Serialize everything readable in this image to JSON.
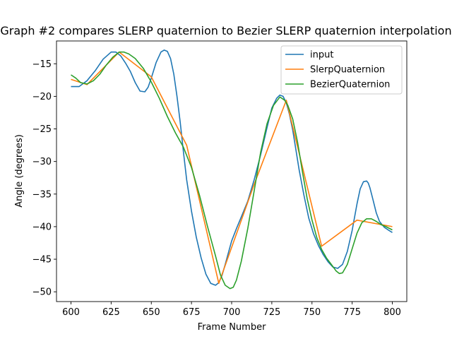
{
  "chart_data": {
    "type": "line",
    "title": "Graph #2 compares SLERP quaternion to Bezier SLERP quaternion interpolation",
    "xlabel": "Frame Number",
    "ylabel": "Angle (degrees)",
    "xlim": [
      591,
      809
    ],
    "ylim": [
      -51.5,
      -11.5
    ],
    "xticks": [
      600,
      625,
      650,
      675,
      700,
      725,
      750,
      775,
      800
    ],
    "yticks": [
      -50,
      -45,
      -40,
      -35,
      -30,
      -25,
      -20,
      -15
    ],
    "grid": false,
    "legend_position": "top-right",
    "series": [
      {
        "name": "input",
        "color": "#1f77b4",
        "x": [
          600,
          605,
          610,
          615,
          620,
          625,
          628,
          631,
          634,
          637,
          640,
          643,
          646,
          648,
          650,
          653,
          656,
          658,
          660,
          662,
          664,
          666,
          668,
          670,
          672,
          675,
          678,
          681,
          684,
          687,
          690,
          692,
          694,
          696,
          698,
          700,
          703,
          706,
          710,
          714,
          718,
          722,
          725,
          728,
          730,
          732,
          734,
          736,
          738,
          740,
          742,
          745,
          748,
          751,
          754,
          757,
          760,
          763,
          766,
          769,
          772,
          775,
          778,
          780,
          782,
          784,
          785,
          786,
          788,
          790,
          792,
          795,
          798,
          800
        ],
        "y": [
          -18.5,
          -18.5,
          -17.6,
          -16.1,
          -14.3,
          -13.2,
          -13.2,
          -13.8,
          -14.9,
          -16.2,
          -17.9,
          -19.2,
          -19.3,
          -18.6,
          -17.2,
          -14.8,
          -13.2,
          -12.9,
          -13.1,
          -14.2,
          -16.6,
          -20.0,
          -24.0,
          -28.5,
          -32.8,
          -37.6,
          -41.6,
          -44.8,
          -47.3,
          -48.7,
          -49.0,
          -48.6,
          -47.5,
          -45.8,
          -44.0,
          -42.2,
          -40.3,
          -38.5,
          -36.1,
          -32.8,
          -29.0,
          -24.8,
          -21.8,
          -20.3,
          -19.8,
          -20.0,
          -21.0,
          -22.8,
          -25.2,
          -28.2,
          -31.3,
          -35.2,
          -38.7,
          -41.1,
          -42.9,
          -44.3,
          -45.4,
          -46.2,
          -46.4,
          -45.8,
          -43.8,
          -40.6,
          -36.5,
          -34.2,
          -33.1,
          -33.0,
          -33.3,
          -34.0,
          -35.9,
          -37.9,
          -39.2,
          -40.1,
          -40.6,
          -40.9
        ]
      },
      {
        "name": "SlerpQuaternion",
        "color": "#ff7f0e",
        "x": [
          600,
          610,
          630,
          650,
          672,
          692,
          714,
          734,
          756,
          778,
          800
        ],
        "y": [
          -17.4,
          -18.2,
          -13.2,
          -17.0,
          -27.5,
          -48.7,
          -33.5,
          -20.6,
          -43.0,
          -39.0,
          -40.0
        ]
      },
      {
        "name": "BezierQuaternion",
        "color": "#2ca02c",
        "x": [
          600,
          603,
          606,
          610,
          614,
          618,
          622,
          626,
          630,
          633,
          636,
          640,
          645,
          650,
          655,
          660,
          665,
          670,
          675,
          680,
          685,
          690,
          693,
          696,
          699,
          701,
          703,
          706,
          710,
          714,
          718,
          722,
          726,
          730,
          733,
          735,
          738,
          741,
          744,
          747,
          750,
          753,
          756,
          759,
          762,
          765,
          767,
          769,
          772,
          775,
          778,
          781,
          784,
          787,
          790,
          793,
          796,
          800
        ],
        "y": [
          -16.7,
          -17.2,
          -17.9,
          -18.1,
          -17.6,
          -16.6,
          -15.2,
          -14.0,
          -13.2,
          -13.2,
          -13.5,
          -14.2,
          -15.7,
          -17.8,
          -20.3,
          -23.1,
          -25.6,
          -27.8,
          -30.9,
          -35.2,
          -40.0,
          -44.5,
          -47.4,
          -49.0,
          -49.5,
          -49.3,
          -48.2,
          -45.3,
          -40.3,
          -34.5,
          -28.6,
          -24.2,
          -21.4,
          -20.1,
          -20.6,
          -21.4,
          -23.5,
          -27.0,
          -31.5,
          -35.7,
          -39.0,
          -41.7,
          -43.5,
          -44.8,
          -45.8,
          -46.8,
          -47.2,
          -47.1,
          -45.8,
          -43.4,
          -41.0,
          -39.4,
          -38.8,
          -38.8,
          -39.2,
          -39.7,
          -40.0,
          -40.5
        ]
      }
    ]
  }
}
